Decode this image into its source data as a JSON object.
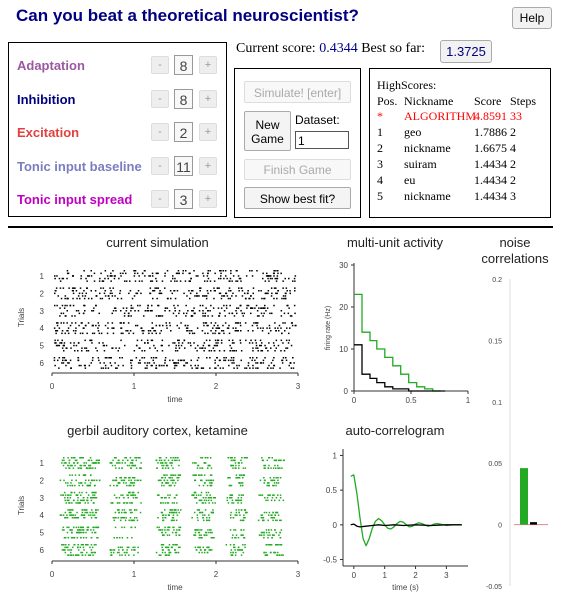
{
  "title": "Can you beat a theoretical neuroscientist?",
  "help_label": "Help",
  "params": [
    {
      "label": "Adaptation",
      "value": "8",
      "color": "#9a59a0"
    },
    {
      "label": "Inhibition",
      "value": "8",
      "color": "#000080"
    },
    {
      "label": "Excitation",
      "value": "2",
      "color": "#e04040"
    },
    {
      "label": "Tonic input baseline",
      "value": "11",
      "color": "#7a7ec0"
    },
    {
      "label": "Tonic input spread",
      "value": "3",
      "color": "#c000c0"
    }
  ],
  "stepper": {
    "minus": "-",
    "plus": "+"
  },
  "score": {
    "current_label": "Current score:",
    "current_value": "0.4344",
    "best_label": "Best so far:",
    "best_value": "1.3725"
  },
  "controls": {
    "simulate": "Simulate! [enter]",
    "new_game": "New Game",
    "dataset_label": "Dataset:",
    "dataset_value": "1",
    "finish": "Finish Game",
    "show_best": "Show best fit?"
  },
  "highscores": {
    "title": "HighScores:",
    "headers": {
      "pos": "Pos.",
      "nickname": "Nickname",
      "score": "Score",
      "steps": "Steps"
    },
    "rows": [
      {
        "pos": "*",
        "nickname": "ALGORITHM",
        "score": "4.8591",
        "steps": "33",
        "highlight": true
      },
      {
        "pos": "1",
        "nickname": "geo",
        "score": "1.7886",
        "steps": "2"
      },
      {
        "pos": "2",
        "nickname": "nickname",
        "score": "1.6675",
        "steps": "4"
      },
      {
        "pos": "3",
        "nickname": "suiram",
        "score": "1.4434",
        "steps": "2"
      },
      {
        "pos": "4",
        "nickname": "eu",
        "score": "1.4434",
        "steps": "2"
      },
      {
        "pos": "5",
        "nickname": "nickname",
        "score": "1.4434",
        "steps": "3"
      }
    ]
  },
  "chart_data": [
    {
      "type": "scatter",
      "title": "current simulation",
      "xlabel": "time",
      "ylabel": "Trials",
      "x_ticks": [
        "0",
        "1",
        "2",
        "3"
      ],
      "y_ticks": [
        "1",
        "2",
        "3",
        "4",
        "5",
        "6"
      ],
      "xlim": [
        0,
        3
      ],
      "color": "#000000"
    },
    {
      "type": "line",
      "title": "multi-unit activity",
      "xlabel": "",
      "ylabel": "firing rate (Hz)",
      "x_ticks": [
        "0",
        "0.5",
        "1"
      ],
      "y_ticks": [
        "0",
        "10",
        "20",
        "30"
      ],
      "xlim": [
        0,
        1
      ],
      "ylim": [
        0,
        30
      ],
      "series": [
        {
          "color": "#22aa22",
          "x": [
            0,
            0.07,
            0.07,
            0.14,
            0.14,
            0.2,
            0.2,
            0.27,
            0.27,
            0.34,
            0.34,
            0.41,
            0.41,
            0.48,
            0.48,
            0.55,
            0.55,
            0.62,
            0.62,
            0.69,
            0.69,
            0.76
          ],
          "y": [
            23,
            23,
            14,
            14,
            12,
            12,
            10,
            10,
            8,
            8,
            6,
            6,
            4,
            4,
            2,
            2,
            1,
            1,
            0.5,
            0.5,
            0,
            0
          ]
        },
        {
          "color": "#000000",
          "x": [
            0,
            0.07,
            0.07,
            0.14,
            0.14,
            0.2,
            0.2,
            0.27,
            0.27,
            0.34,
            0.34,
            0.48,
            0.48,
            0.8
          ],
          "y": [
            11,
            11,
            4,
            4,
            3,
            3,
            2,
            2,
            1,
            1,
            0.5,
            0.5,
            0,
            0
          ]
        }
      ]
    },
    {
      "type": "bar",
      "title": "noise correlations",
      "y_ticks": [
        "0.2",
        "0.15",
        "0.1",
        "0.05",
        "0",
        "-0.05"
      ],
      "ylim": [
        -0.05,
        0.2
      ],
      "series": [
        {
          "color": "#22aa22",
          "values": [
            0.046
          ]
        },
        {
          "color": "#000000",
          "values": [
            0.002
          ]
        }
      ]
    },
    {
      "type": "scatter",
      "title": "gerbil auditory cortex, ketamine",
      "xlabel": "time",
      "ylabel": "Trials",
      "x_ticks": [
        "0",
        "1",
        "2",
        "3"
      ],
      "y_ticks": [
        "1",
        "2",
        "3",
        "4",
        "5",
        "6"
      ],
      "xlim": [
        0,
        3
      ],
      "color": "#22aa22"
    },
    {
      "type": "line",
      "title": "auto-correlogram",
      "xlabel": "time (s)",
      "ylabel": "",
      "x_ticks": [
        "0",
        "1",
        "2",
        "3"
      ],
      "y_ticks": [
        "1",
        "0.5",
        "0",
        "-0.5"
      ],
      "xlim": [
        -0.35,
        3.7
      ],
      "ylim": [
        -0.55,
        1.05
      ],
      "series": [
        {
          "color": "#22aa22",
          "x": [
            -0.1,
            0.0,
            0.1,
            0.2,
            0.3,
            0.4,
            0.5,
            0.6,
            0.7,
            0.8,
            0.9,
            1.0,
            1.1,
            1.2,
            1.3,
            1.4,
            1.5,
            1.6,
            1.7,
            1.8,
            1.9,
            2.0,
            2.1,
            2.2,
            2.3,
            2.4,
            2.5,
            2.6,
            2.7,
            2.8,
            2.9,
            3.0,
            3.2,
            3.5
          ],
          "y": [
            0.7,
            0.72,
            0.45,
            0.1,
            -0.2,
            -0.3,
            -0.2,
            -0.05,
            0.05,
            0.09,
            0.06,
            0.0,
            -0.05,
            -0.06,
            -0.03,
            0.02,
            0.05,
            0.04,
            0.0,
            -0.03,
            -0.02,
            0.01,
            0.03,
            0.02,
            0.0,
            -0.02,
            -0.01,
            0.01,
            0.02,
            0.01,
            0.0,
            -0.01,
            0.0,
            0.0
          ]
        },
        {
          "color": "#000000",
          "x": [
            -0.1,
            0.0,
            0.1,
            0.2,
            0.4,
            0.6,
            0.8,
            1.0,
            1.3,
            1.6,
            2.0,
            2.5,
            3.0,
            3.5
          ],
          "y": [
            0.0,
            0.01,
            -0.02,
            -0.03,
            -0.02,
            -0.01,
            0.0,
            -0.01,
            0.0,
            -0.01,
            0.0,
            -0.01,
            0.0,
            0.0
          ]
        }
      ]
    }
  ]
}
